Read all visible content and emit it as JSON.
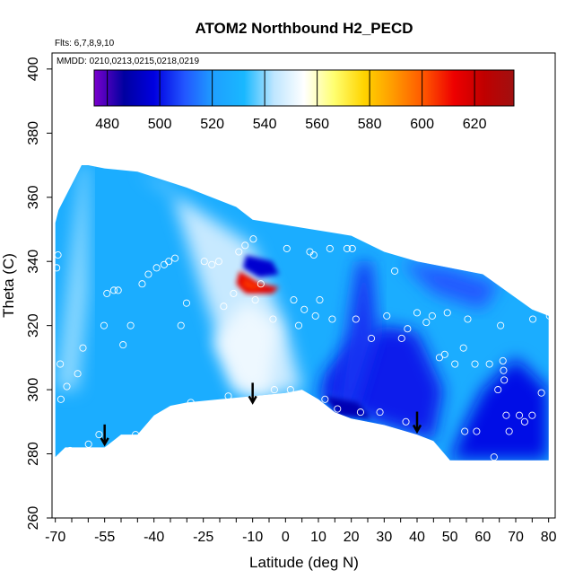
{
  "chart_data": {
    "type": "heatmap",
    "title": "ATOM2 Northbound H2_PECD",
    "subtitle_lines": [
      "Flts: 6,7,8,9,10",
      "MMDD: 0210,0213,0215,0218,0219"
    ],
    "xlabel": "Latitude (deg N)",
    "ylabel": "Theta (C)",
    "xlim": [
      -71,
      82
    ],
    "ylim": [
      260,
      405
    ],
    "x_tick_labels": [
      -70,
      -55,
      -40,
      -25,
      -10,
      0,
      10,
      20,
      30,
      40,
      50,
      60,
      70,
      80
    ],
    "x_minor_ticks": [
      -70,
      -65,
      -60,
      -55,
      -50,
      -45,
      -40,
      -35,
      -30,
      -25,
      -20,
      -15,
      -10,
      -5,
      0,
      5,
      10,
      15,
      20,
      25,
      30,
      35,
      40,
      45,
      50,
      55,
      60,
      65,
      70,
      75,
      80
    ],
    "y_ticks": [
      260,
      280,
      300,
      320,
      340,
      360,
      380,
      400
    ],
    "colorbar": {
      "ticks": [
        480,
        500,
        520,
        540,
        560,
        580,
        600,
        620
      ],
      "range": [
        475,
        635
      ],
      "colors": [
        "#7a00cc",
        "#0000a0",
        "#0000e0",
        "#2255ff",
        "#1ea0ff",
        "#19b8ff",
        "#bfe6ff",
        "#ffffff",
        "#ffff70",
        "#ffd400",
        "#ff9900",
        "#ff5500",
        "#ee0000",
        "#c00000",
        "#a01010"
      ]
    },
    "field_outline": [
      [
        -70,
        279
      ],
      [
        -67,
        282
      ],
      [
        -55,
        282
      ],
      [
        -50,
        286
      ],
      [
        -45,
        286
      ],
      [
        -40,
        292
      ],
      [
        -35,
        295
      ],
      [
        -30,
        296
      ],
      [
        -20,
        297
      ],
      [
        -10,
        298
      ],
      [
        0,
        299
      ],
      [
        5,
        300
      ],
      [
        10,
        297
      ],
      [
        15,
        293
      ],
      [
        20,
        291
      ],
      [
        30,
        289
      ],
      [
        40,
        286
      ],
      [
        45,
        284
      ],
      [
        50,
        278
      ],
      [
        80,
        278
      ],
      [
        80,
        323
      ],
      [
        75,
        325
      ],
      [
        60,
        336
      ],
      [
        50,
        338
      ],
      [
        40,
        340
      ],
      [
        30,
        343
      ],
      [
        20,
        348
      ],
      [
        -10,
        353
      ],
      [
        -15,
        357
      ],
      [
        -30,
        363
      ],
      [
        -45,
        368
      ],
      [
        -55,
        369
      ],
      [
        -60,
        370
      ],
      [
        -62,
        370
      ],
      [
        -66,
        362
      ],
      [
        -69,
        356
      ],
      [
        -70,
        352
      ]
    ],
    "field_regions": [
      {
        "name": "southern-pale-band",
        "value": 540,
        "polygon": [
          [
            -70,
            300
          ],
          [
            -62,
            370
          ],
          [
            -60,
            370
          ],
          [
            -60,
            330
          ],
          [
            -63,
            300
          ]
        ]
      },
      {
        "name": "central-pale-plume",
        "value": 545,
        "polygon": [
          [
            -45,
            368
          ],
          [
            -35,
            363
          ],
          [
            -25,
            330
          ],
          [
            -15,
            300
          ],
          [
            -8,
            298
          ],
          [
            5,
            300
          ],
          [
            0,
            320
          ],
          [
            -10,
            345
          ],
          [
            -25,
            355
          ]
        ]
      },
      {
        "name": "plume-core",
        "value": 552,
        "polygon": [
          [
            -15,
            300
          ],
          [
            -5,
            298
          ],
          [
            -2,
            320
          ],
          [
            -12,
            328
          ],
          [
            -22,
            315
          ]
        ]
      },
      {
        "name": "northern-dark-wedge",
        "value": 502,
        "polygon": [
          [
            10,
            297
          ],
          [
            30,
            289
          ],
          [
            40,
            286
          ],
          [
            45,
            284
          ],
          [
            48,
            300
          ],
          [
            40,
            318
          ],
          [
            30,
            320
          ],
          [
            20,
            315
          ],
          [
            12,
            305
          ]
        ]
      },
      {
        "name": "mid-dark-column",
        "value": 505,
        "polygon": [
          [
            15,
            293
          ],
          [
            22,
            340
          ],
          [
            26,
            340
          ],
          [
            28,
            318
          ],
          [
            20,
            291
          ]
        ]
      },
      {
        "name": "northeast-dark",
        "value": 500,
        "polygon": [
          [
            50,
            278
          ],
          [
            80,
            278
          ],
          [
            80,
            300
          ],
          [
            70,
            310
          ],
          [
            60,
            300
          ],
          [
            55,
            290
          ]
        ]
      },
      {
        "name": "deep-violet-patch",
        "value": 490,
        "polygon": [
          [
            12,
            298
          ],
          [
            22,
            296
          ],
          [
            26,
            291
          ],
          [
            16,
            292
          ]
        ]
      },
      {
        "name": "upper-dark-streak",
        "value": 510,
        "polygon": [
          [
            35,
            340
          ],
          [
            50,
            338
          ],
          [
            65,
            333
          ],
          [
            60,
            325
          ],
          [
            45,
            330
          ]
        ]
      },
      {
        "name": "hotspot-dark-rim",
        "value": 495,
        "polygon": [
          [
            -12,
            342
          ],
          [
            -4,
            340
          ],
          [
            -2,
            336
          ],
          [
            -8,
            335
          ],
          [
            -13,
            338
          ]
        ]
      },
      {
        "name": "hotspot",
        "value": 615,
        "polygon": [
          [
            -14,
            337
          ],
          [
            -8,
            333
          ],
          [
            -2,
            332
          ],
          [
            -4,
            330
          ],
          [
            -12,
            330
          ],
          [
            -15,
            333
          ]
        ]
      },
      {
        "name": "hotspot-core",
        "value": 605,
        "polygon": [
          [
            -13,
            335
          ],
          [
            -9,
            333
          ],
          [
            -6,
            332
          ],
          [
            -10,
            331
          ],
          [
            -13,
            332
          ]
        ]
      }
    ],
    "points": [
      [
        -69.6,
        338
      ],
      [
        -69.2,
        342
      ],
      [
        -68.5,
        308
      ],
      [
        -68.3,
        297
      ],
      [
        -67.8,
        279
      ],
      [
        -66.5,
        301
      ],
      [
        -65.5,
        281
      ],
      [
        -63.2,
        305
      ],
      [
        -61.6,
        313
      ],
      [
        -59.9,
        283
      ],
      [
        -56.7,
        286
      ],
      [
        -55.2,
        320
      ],
      [
        -54.3,
        330
      ],
      [
        -52.2,
        331
      ],
      [
        -50.9,
        331
      ],
      [
        -49.4,
        314
      ],
      [
        -47.1,
        320
      ],
      [
        -45.6,
        286
      ],
      [
        -43.6,
        333
      ],
      [
        -41.7,
        336
      ],
      [
        -39.2,
        338
      ],
      [
        -36.9,
        339
      ],
      [
        -35.5,
        340
      ],
      [
        -33.6,
        341
      ],
      [
        -31.8,
        320
      ],
      [
        -30.1,
        327
      ],
      [
        -28.8,
        296
      ],
      [
        -24.7,
        340
      ],
      [
        -22.4,
        339
      ],
      [
        -20.3,
        340
      ],
      [
        -18.8,
        326
      ],
      [
        -17.4,
        298
      ],
      [
        -15.8,
        330
      ],
      [
        -14.2,
        343
      ],
      [
        -12.3,
        345
      ],
      [
        -9.8,
        347
      ],
      [
        -9.2,
        328
      ],
      [
        -7.5,
        333
      ],
      [
        -3.8,
        322
      ],
      [
        -3.4,
        300
      ],
      [
        0.4,
        344
      ],
      [
        1.5,
        300
      ],
      [
        2.5,
        328
      ],
      [
        4.0,
        320
      ],
      [
        5.7,
        325
      ],
      [
        7.4,
        343
      ],
      [
        8.6,
        342
      ],
      [
        9.1,
        323
      ],
      [
        10.4,
        328
      ],
      [
        11.8,
        289
      ],
      [
        12.0,
        297
      ],
      [
        13.5,
        344
      ],
      [
        14.2,
        322
      ],
      [
        15.8,
        294
      ],
      [
        18.7,
        344
      ],
      [
        20.3,
        344
      ],
      [
        21.4,
        322
      ],
      [
        22.8,
        293
      ],
      [
        26.1,
        316
      ],
      [
        28.1,
        346
      ],
      [
        28.7,
        293
      ],
      [
        30.8,
        323
      ],
      [
        33.2,
        337
      ],
      [
        35.3,
        316
      ],
      [
        36.6,
        290
      ],
      [
        37.1,
        319
      ],
      [
        40.0,
        324
      ],
      [
        42.8,
        321
      ],
      [
        44.6,
        323
      ],
      [
        46.8,
        310
      ],
      [
        48.4,
        311
      ],
      [
        49.2,
        324
      ],
      [
        51.5,
        308
      ],
      [
        54.1,
        313
      ],
      [
        54.5,
        287
      ],
      [
        55.4,
        322
      ],
      [
        57.6,
        308
      ],
      [
        58.1,
        287
      ],
      [
        62.0,
        308
      ],
      [
        63.4,
        279
      ],
      [
        64.6,
        300
      ],
      [
        65.4,
        320
      ],
      [
        66.1,
        309
      ],
      [
        66.3,
        306
      ],
      [
        66.5,
        303
      ],
      [
        67.1,
        292
      ],
      [
        68.0,
        287
      ],
      [
        71.1,
        292
      ],
      [
        72.7,
        290
      ],
      [
        75.0,
        292
      ],
      [
        75.2,
        322
      ],
      [
        77.8,
        299
      ],
      [
        80.3,
        323
      ]
    ],
    "arrows": [
      -55,
      -10,
      40
    ]
  }
}
